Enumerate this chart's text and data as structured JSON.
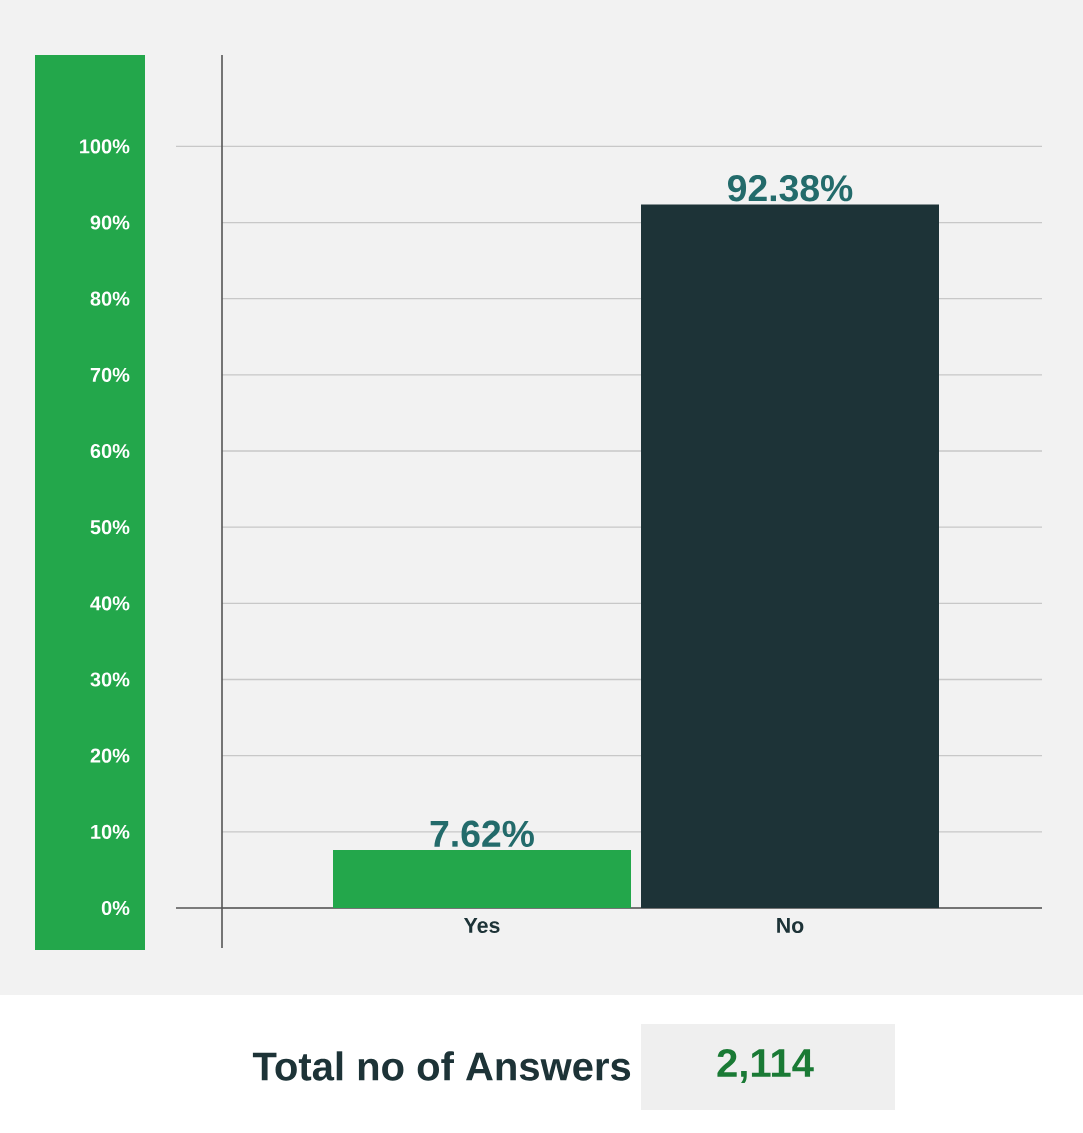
{
  "chart_data": {
    "type": "bar",
    "categories": [
      "Yes",
      "No"
    ],
    "values": [
      7.62,
      92.38
    ],
    "colors": [
      "#23a74b",
      "#1d3337"
    ],
    "value_labels": [
      "7.62%",
      "92.38%"
    ],
    "ylim": [
      0,
      112
    ],
    "yticks": [
      {
        "value": 0,
        "label": "0%"
      },
      {
        "value": 10,
        "label": "10%"
      },
      {
        "value": 20,
        "label": "20%"
      },
      {
        "value": 30,
        "label": "30%"
      },
      {
        "value": 40,
        "label": "40%"
      },
      {
        "value": 50,
        "label": "50%"
      },
      {
        "value": 60,
        "label": "60%"
      },
      {
        "value": 70,
        "label": "70%"
      },
      {
        "value": 80,
        "label": "80%"
      },
      {
        "value": 90,
        "label": "90%"
      },
      {
        "value": 100,
        "label": "100%"
      }
    ],
    "grid": "y",
    "annotations": [
      "Total no of Answers",
      "2,114"
    ]
  }
}
